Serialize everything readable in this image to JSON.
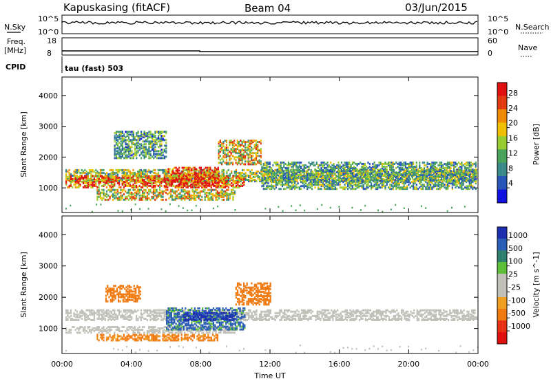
{
  "header": {
    "station": "Kapuskasing (fitACF)",
    "beam": "Beam 04",
    "date": "03/Jun/2015"
  },
  "panels": {
    "nsky": {
      "left_label": "N.Sky",
      "right_label": "N.Search",
      "left_ticks": [
        "10^5",
        "10^0"
      ],
      "right_ticks": [
        "10^5",
        "10^0"
      ]
    },
    "freq": {
      "left_label_1": "Freq.",
      "left_label_2": "[MHz]",
      "right_label": "Nave",
      "left_ticks": [
        "18",
        "8"
      ],
      "right_ticks": [
        "60",
        "0"
      ]
    },
    "cpid": {
      "label": "CPID",
      "text": "tau (fast) 503"
    }
  },
  "colors": {
    "power_scale": [
      "#1010e0",
      "#2855b8",
      "#3b8a8a",
      "#4aa35a",
      "#9acd32",
      "#f0c000",
      "#f08a00",
      "#e23a10",
      "#e01010"
    ],
    "velocity_scale": [
      "#1d2fb0",
      "#2a5db5",
      "#2f7f6e",
      "#5fbf3a",
      "#c0c0b8",
      "#c0c0b8",
      "#f0a020",
      "#f07a10",
      "#e83015",
      "#e01010"
    ]
  },
  "chart_data": [
    {
      "type": "heatmap",
      "name": "power_panel",
      "title": "",
      "ylabel": "Slant Range [km]",
      "colorbar_label": "Power [dB]",
      "colorbar_ticks": [
        "28",
        "24",
        "20",
        "16",
        "12",
        "8",
        "4"
      ],
      "colorbar_range": [
        0,
        30
      ],
      "ylim": [
        200,
        4600
      ],
      "yticks": [
        "1000",
        "2000",
        "3000",
        "4000"
      ],
      "xlim": [
        "00:00",
        "24:00"
      ],
      "regions": [
        {
          "t0": 0.2,
          "t1": 24.0,
          "r0": 1250,
          "r1": 1650,
          "value": 14
        },
        {
          "t0": 0.2,
          "t1": 10.5,
          "r0": 1050,
          "r1": 1450,
          "value": 24
        },
        {
          "t0": 2.0,
          "t1": 10.0,
          "r0": 650,
          "r1": 1000,
          "value": 17
        },
        {
          "t0": 6.0,
          "t1": 9.0,
          "r0": 1100,
          "r1": 1700,
          "value": 27
        },
        {
          "t0": 3.0,
          "t1": 6.0,
          "r0": 2000,
          "r1": 2900,
          "value": 10
        },
        {
          "t0": 9.0,
          "t1": 11.5,
          "r0": 1800,
          "r1": 2600,
          "value": 18
        },
        {
          "t0": 11.5,
          "t1": 24.0,
          "r0": 1000,
          "r1": 1900,
          "value": 11
        }
      ]
    },
    {
      "type": "heatmap",
      "name": "velocity_panel",
      "title": "",
      "ylabel": "Slant Range [km]",
      "colorbar_label": "Velocity [m s^-1]",
      "colorbar_ticks": [
        "1000",
        "500",
        "100",
        "25",
        "-25",
        "-100",
        "-500",
        "-1000"
      ],
      "colorbar_range": [
        -1000,
        1000
      ],
      "ylim": [
        200,
        4600
      ],
      "yticks": [
        "1000",
        "2000",
        "3000",
        "4000"
      ],
      "xlim": [
        "00:00",
        "24:00"
      ],
      "regions": [
        {
          "t0": 0.2,
          "t1": 24.0,
          "r0": 1300,
          "r1": 1650,
          "value": 0
        },
        {
          "t0": 0.2,
          "t1": 10.0,
          "r0": 900,
          "r1": 1100,
          "value": 0
        },
        {
          "t0": 6.0,
          "t1": 10.5,
          "r0": 1000,
          "r1": 1700,
          "value": 120
        },
        {
          "t0": 7.0,
          "t1": 10.0,
          "r0": 1300,
          "r1": 1550,
          "value": 600
        },
        {
          "t0": 2.5,
          "t1": 4.5,
          "r0": 1900,
          "r1": 2400,
          "value": -300
        },
        {
          "t0": 2.0,
          "t1": 9.0,
          "r0": 650,
          "r1": 850,
          "value": -120
        },
        {
          "t0": 10.0,
          "t1": 12.0,
          "r0": 1800,
          "r1": 2500,
          "value": -200
        }
      ]
    }
  ],
  "xaxis": {
    "label": "Time UT",
    "ticks": [
      "00:00",
      "04:00",
      "08:00",
      "12:00",
      "16:00",
      "20:00",
      "00:00"
    ]
  }
}
